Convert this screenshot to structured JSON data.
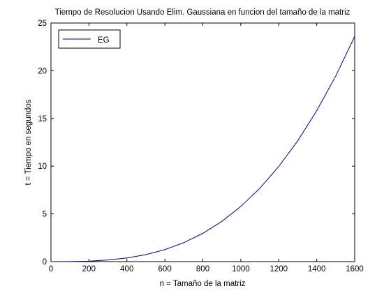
{
  "chart_data": {
    "type": "line",
    "title": "Tiempo de Resolucion Usando Elim. Gaussiana en funcion del tamaño de la matriz",
    "xlabel": "n = Tamaño de la matriz",
    "ylabel": "t = Tiempo en segundos",
    "xlim": [
      0,
      1600
    ],
    "ylim": [
      0,
      25
    ],
    "xticks": [
      0,
      200,
      400,
      600,
      800,
      1000,
      1200,
      1400,
      1600
    ],
    "yticks": [
      0,
      5,
      10,
      15,
      20,
      25
    ],
    "grid": false,
    "legend_position": "top-left",
    "series": [
      {
        "name": "EG",
        "color": "#00007f",
        "x": [
          0,
          100,
          200,
          300,
          400,
          500,
          600,
          700,
          800,
          900,
          1000,
          1100,
          1200,
          1300,
          1400,
          1500,
          1600
        ],
        "y": [
          0.0,
          0.01,
          0.05,
          0.17,
          0.38,
          0.73,
          1.25,
          1.99,
          2.96,
          4.21,
          5.78,
          7.68,
          9.97,
          12.66,
          15.82,
          19.44,
          23.6
        ]
      }
    ]
  }
}
